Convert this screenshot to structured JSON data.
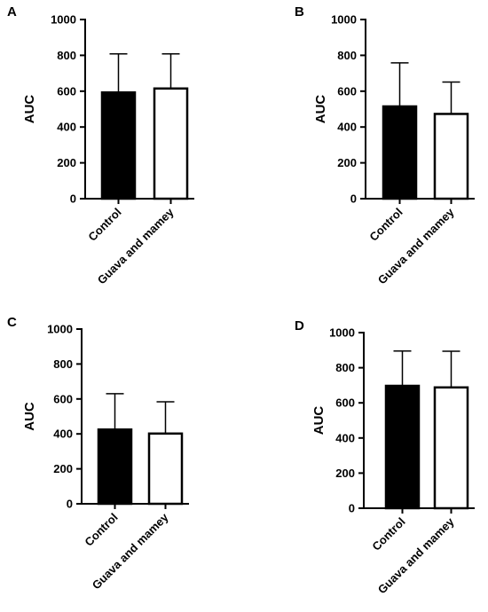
{
  "chart_data": [
    {
      "panel": "A",
      "type": "bar",
      "categories": [
        "Control",
        "Guava and mamey"
      ],
      "values": [
        593,
        615
      ],
      "errors": [
        215,
        193
      ],
      "bar_fills": [
        "#000000",
        "#ffffff"
      ],
      "ylabel": "AUC",
      "ylim": [
        0,
        1000
      ],
      "yticks": [
        0,
        200,
        400,
        600,
        800,
        1000
      ],
      "grid": false
    },
    {
      "panel": "B",
      "type": "bar",
      "categories": [
        "Control",
        "Guava and mamey"
      ],
      "values": [
        515,
        473
      ],
      "errors": [
        243,
        178
      ],
      "bar_fills": [
        "#000000",
        "#ffffff"
      ],
      "ylabel": "AUC",
      "ylim": [
        0,
        1000
      ],
      "yticks": [
        0,
        200,
        400,
        600,
        800,
        1000
      ],
      "grid": false
    },
    {
      "panel": "C",
      "type": "bar",
      "categories": [
        "Control",
        "Guava and mamey"
      ],
      "values": [
        425,
        402
      ],
      "errors": [
        205,
        182
      ],
      "bar_fills": [
        "#000000",
        "#ffffff"
      ],
      "ylabel": "AUC",
      "ylim": [
        0,
        1000
      ],
      "yticks": [
        0,
        200,
        400,
        600,
        800,
        1000
      ],
      "grid": false
    },
    {
      "panel": "D",
      "type": "bar",
      "categories": [
        "Control",
        "Guava and mamey"
      ],
      "values": [
        697,
        688
      ],
      "errors": [
        198,
        206
      ],
      "bar_fills": [
        "#000000",
        "#ffffff"
      ],
      "ylabel": "AUC",
      "ylim": [
        0,
        1000
      ],
      "yticks": [
        0,
        200,
        400,
        600,
        800,
        1000
      ],
      "grid": false
    }
  ]
}
